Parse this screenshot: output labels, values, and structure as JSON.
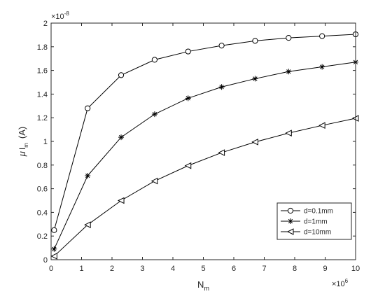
{
  "chart_data": {
    "type": "line",
    "title": "",
    "xlabel": {
      "base": "N",
      "sub": "m"
    },
    "ylabel": {
      "mu": "μ",
      "base": "I",
      "sub": "m",
      "unit": "(A)"
    },
    "x_exponent": {
      "base": "×10",
      "exp": "6"
    },
    "y_exponent": {
      "base": "×10",
      "exp": "-8"
    },
    "xlim": [
      0,
      10
    ],
    "ylim": [
      0,
      2
    ],
    "xticks": [
      0,
      1,
      2,
      3,
      4,
      5,
      6,
      7,
      8,
      9,
      10
    ],
    "xtick_labels": [
      "0",
      "1",
      "2",
      "3",
      "4",
      "5",
      "6",
      "7",
      "8",
      "9",
      "10"
    ],
    "yticks": [
      0,
      0.2,
      0.4,
      0.6,
      0.8,
      1,
      1.2,
      1.4,
      1.6,
      1.8,
      2
    ],
    "ytick_labels": [
      "0",
      "0.2",
      "0.4",
      "0.6",
      "0.8",
      "1",
      "1.2",
      "1.4",
      "1.6",
      "1.8",
      "2"
    ],
    "grid": false,
    "legend_position": "lower-right",
    "line_color": "#000000",
    "x": [
      0.1,
      1.2,
      2.3,
      3.4,
      4.5,
      5.6,
      6.7,
      7.8,
      8.9,
      10
    ],
    "series": [
      {
        "name": "d=0.1mm",
        "marker": "circle",
        "values": [
          0.25,
          1.28,
          1.56,
          1.69,
          1.76,
          1.81,
          1.85,
          1.875,
          1.89,
          1.905
        ]
      },
      {
        "name": "d=1mm",
        "marker": "star",
        "values": [
          0.09,
          0.71,
          1.035,
          1.23,
          1.365,
          1.46,
          1.53,
          1.59,
          1.63,
          1.67
        ]
      },
      {
        "name": "d=10mm",
        "marker": "triangle-left",
        "values": [
          0.03,
          0.295,
          0.5,
          0.665,
          0.795,
          0.905,
          0.995,
          1.07,
          1.135,
          1.195
        ]
      }
    ]
  }
}
